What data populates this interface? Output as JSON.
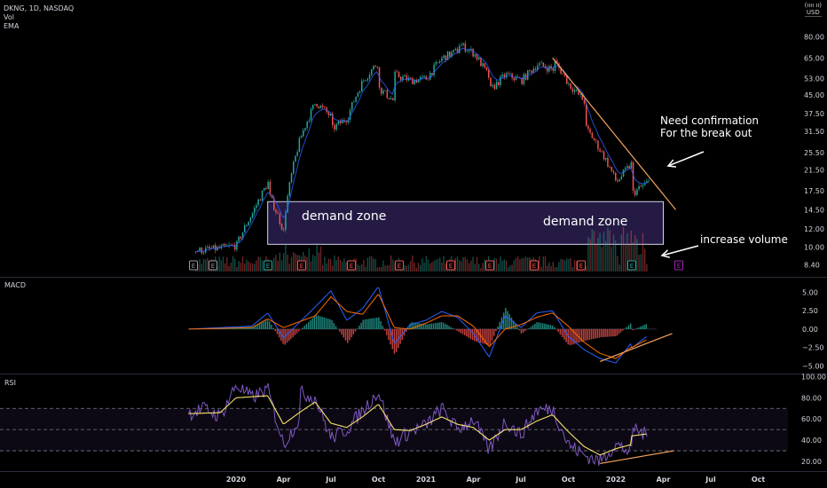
{
  "header": {
    "symbol_line": "DKNG, 1D, NASDAQ",
    "indicator_1": "Vol",
    "indicator_2": "EMA",
    "currency_line1": "(ıııı ıı)",
    "currency_line2": "USD"
  },
  "panes": {
    "macd_label": "MACD",
    "rsi_label": "RSI"
  },
  "annotations": {
    "demand_zone_left": "demand zone",
    "demand_zone_right": "demand zone",
    "confirm_line1": "Need confirmation",
    "confirm_line2": "For the break out",
    "volume_note": "increase volume"
  },
  "colors": {
    "background": "#000000",
    "up_candle": "#26a69a",
    "down_candle": "#ef5350",
    "ema_line": "#2962ff",
    "trendline": "#f7a35c",
    "zone_fill": "#2a1f4f",
    "zone_border": "#d7d2f0",
    "macd_line": "#2962ff",
    "signal_line": "#ff6d00",
    "rsi_line": "#7e57c2",
    "rsi_ma": "#f5e26a",
    "arrow": "#ffffff"
  },
  "chart_data": [
    {
      "type": "candlestick",
      "pane": "price",
      "scale": "log",
      "y_ticks": [
        "80.00",
        "65.00",
        "53.00",
        "45.00",
        "37.50",
        "31.50",
        "25.50",
        "21.50",
        "17.50",
        "14.50",
        "12.00",
        "10.00",
        "8.40"
      ],
      "x_ticks": [
        "2020",
        "Apr",
        "Jul",
        "Oct",
        "2021",
        "Apr",
        "Jul",
        "Oct",
        "2022",
        "Apr",
        "Jul",
        "Oct"
      ],
      "ylim": [
        7.6,
        95
      ],
      "path_points": [
        [
          "2019-10",
          9.6
        ],
        [
          "2019-12",
          9.9
        ],
        [
          "2020-01",
          10.2
        ],
        [
          "2020-02",
          14
        ],
        [
          "2020-03",
          19
        ],
        [
          "2020-03",
          17
        ],
        [
          "2020-04",
          11.5
        ],
        [
          "2020-04",
          13
        ],
        [
          "2020-05",
          29
        ],
        [
          "2020-06",
          42
        ],
        [
          "2020-07",
          36
        ],
        [
          "2020-07",
          32
        ],
        [
          "2020-08",
          36
        ],
        [
          "2020-09",
          52
        ],
        [
          "2020-10",
          63
        ],
        [
          "2020-10",
          48
        ],
        [
          "2020-11",
          42
        ],
        [
          "2020-11",
          55
        ],
        [
          "2020-12",
          52
        ],
        [
          "2021-01",
          53
        ],
        [
          "2021-02",
          65
        ],
        [
          "2021-03",
          70
        ],
        [
          "2021-03",
          75
        ],
        [
          "2021-04",
          68
        ],
        [
          "2021-05",
          53
        ],
        [
          "2021-05",
          47
        ],
        [
          "2021-06",
          55
        ],
        [
          "2021-07",
          52
        ],
        [
          "2021-08",
          61
        ],
        [
          "2021-09",
          58
        ],
        [
          "2021-09",
          64
        ],
        [
          "2021-10",
          50
        ],
        [
          "2021-11",
          42
        ],
        [
          "2021-11",
          33
        ],
        [
          "2021-12",
          26
        ],
        [
          "2022-01",
          19
        ],
        [
          "2022-02",
          23
        ],
        [
          "2022-02",
          17
        ],
        [
          "2022-03",
          19
        ]
      ],
      "trendline": [
        [
          "2021-09",
          65
        ],
        [
          "2022-04",
          14.5
        ]
      ],
      "demand_zone": {
        "y_range": [
          10.3,
          15.7
        ],
        "x_range": [
          "2020-03",
          "2022-04"
        ]
      },
      "volume": "histogram, spikes Nov 2021 – Mar 2022"
    },
    {
      "type": "line",
      "pane": "MACD",
      "y_ticks": [
        "5.00",
        "2.50",
        "0.00",
        "−2.50",
        "−5.00"
      ],
      "ylim": [
        -5.8,
        6.5
      ],
      "series": [
        {
          "values": [
            [
              "2019-10",
              0
            ],
            [
              "2020-02",
              0.4
            ],
            [
              "2020-03",
              2.2
            ],
            [
              "2020-04",
              -1.2
            ],
            [
              "2020-06",
              3
            ],
            [
              "2020-07",
              5.2
            ],
            [
              "2020-08",
              1.2
            ],
            [
              "2020-09",
              2.8
            ],
            [
              "2020-10",
              5.8
            ],
            [
              "2020-11",
              -2
            ],
            [
              "2020-12",
              0.6
            ],
            [
              "2021-01",
              1.2
            ],
            [
              "2021-02",
              2.4
            ],
            [
              "2021-03",
              1.6
            ],
            [
              "2021-04",
              -0.6
            ],
            [
              "2021-05",
              -3.8
            ],
            [
              "2021-06",
              1.8
            ],
            [
              "2021-07",
              0.2
            ],
            [
              "2021-08",
              2.2
            ],
            [
              "2021-09",
              2.5
            ],
            [
              "2021-10",
              -1
            ],
            [
              "2021-11",
              -2.8
            ],
            [
              "2021-12",
              -4
            ],
            [
              "2022-01",
              -4.6
            ],
            [
              "2022-02",
              -1.8
            ],
            [
              "2022-02",
              -2.6
            ],
            [
              "2022-03",
              -0.9
            ]
          ]
        },
        {
          "values": [
            [
              "2019-10",
              0
            ],
            [
              "2020-02",
              0.2
            ],
            [
              "2020-03",
              1.4
            ],
            [
              "2020-04",
              0.2
            ],
            [
              "2020-06",
              1.8
            ],
            [
              "2020-07",
              4.4
            ],
            [
              "2020-08",
              2.4
            ],
            [
              "2020-09",
              2
            ],
            [
              "2020-10",
              4.8
            ],
            [
              "2020-11",
              0.2
            ],
            [
              "2020-12",
              0
            ],
            [
              "2021-01",
              0.8
            ],
            [
              "2021-02",
              1.8
            ],
            [
              "2021-03",
              1.8
            ],
            [
              "2021-04",
              0.4
            ],
            [
              "2021-05",
              -2.4
            ],
            [
              "2021-06",
              0
            ],
            [
              "2021-07",
              0.6
            ],
            [
              "2021-08",
              1.6
            ],
            [
              "2021-09",
              2.2
            ],
            [
              "2021-10",
              0.4
            ],
            [
              "2021-11",
              -1.8
            ],
            [
              "2021-12",
              -3.3
            ],
            [
              "2022-01",
              -4
            ],
            [
              "2022-02",
              -2.4
            ],
            [
              "2022-02",
              -2.5
            ],
            [
              "2022-03",
              -1.4
            ]
          ]
        }
      ],
      "trendline": [
        [
          "2021-12",
          -4.4
        ],
        [
          "2022-04",
          -0.6
        ]
      ]
    },
    {
      "type": "line",
      "pane": "RSI",
      "y_ticks": [
        "100.00",
        "80.00",
        "60.00",
        "40.00",
        "20.00"
      ],
      "ylim": [
        15,
        102
      ],
      "bands": [
        70,
        50,
        30
      ],
      "series": [
        {
          "values": [
            [
              "2019-10",
              65
            ],
            [
              "2019-11",
              70
            ],
            [
              "2019-12",
              62
            ],
            [
              "2020-01",
              92
            ],
            [
              "2020-02",
              80
            ],
            [
              "2020-03",
              88
            ],
            [
              "2020-04",
              36
            ],
            [
              "2020-05",
              60
            ],
            [
              "2020-05",
              85
            ],
            [
              "2020-06",
              80
            ],
            [
              "2020-07",
              42
            ],
            [
              "2020-08",
              50
            ],
            [
              "2020-09",
              68
            ],
            [
              "2020-10",
              86
            ],
            [
              "2020-11",
              38
            ],
            [
              "2020-12",
              48
            ],
            [
              "2021-01",
              54
            ],
            [
              "2021-02",
              70
            ],
            [
              "2021-03",
              50
            ],
            [
              "2021-04",
              60
            ],
            [
              "2021-05",
              30
            ],
            [
              "2021-06",
              58
            ],
            [
              "2021-07",
              45
            ],
            [
              "2021-08",
              68
            ],
            [
              "2021-09",
              70
            ],
            [
              "2021-10",
              36
            ],
            [
              "2021-11",
              26
            ],
            [
              "2021-12",
              20
            ],
            [
              "2022-01",
              36
            ],
            [
              "2022-02",
              28
            ],
            [
              "2022-02",
              53
            ],
            [
              "2022-03",
              44
            ]
          ]
        },
        {
          "values": [
            [
              "2019-10",
              65
            ],
            [
              "2019-12",
              66
            ],
            [
              "2020-01",
              80
            ],
            [
              "2020-03",
              82
            ],
            [
              "2020-04",
              55
            ],
            [
              "2020-05",
              66
            ],
            [
              "2020-06",
              76
            ],
            [
              "2020-07",
              56
            ],
            [
              "2020-08",
              52
            ],
            [
              "2020-09",
              62
            ],
            [
              "2020-10",
              74
            ],
            [
              "2020-11",
              50
            ],
            [
              "2020-12",
              49
            ],
            [
              "2021-01",
              55
            ],
            [
              "2021-02",
              62
            ],
            [
              "2021-03",
              55
            ],
            [
              "2021-04",
              52
            ],
            [
              "2021-05",
              40
            ],
            [
              "2021-06",
              50
            ],
            [
              "2021-07",
              50
            ],
            [
              "2021-08",
              58
            ],
            [
              "2021-09",
              64
            ],
            [
              "2021-10",
              48
            ],
            [
              "2021-11",
              34
            ],
            [
              "2021-12",
              26
            ],
            [
              "2022-01",
              32
            ],
            [
              "2022-02",
              36
            ],
            [
              "2022-02",
              44
            ],
            [
              "2022-03",
              46
            ]
          ]
        }
      ],
      "trendline": [
        [
          "2021-12",
          18
        ],
        [
          "2022-04",
          30
        ]
      ]
    }
  ]
}
